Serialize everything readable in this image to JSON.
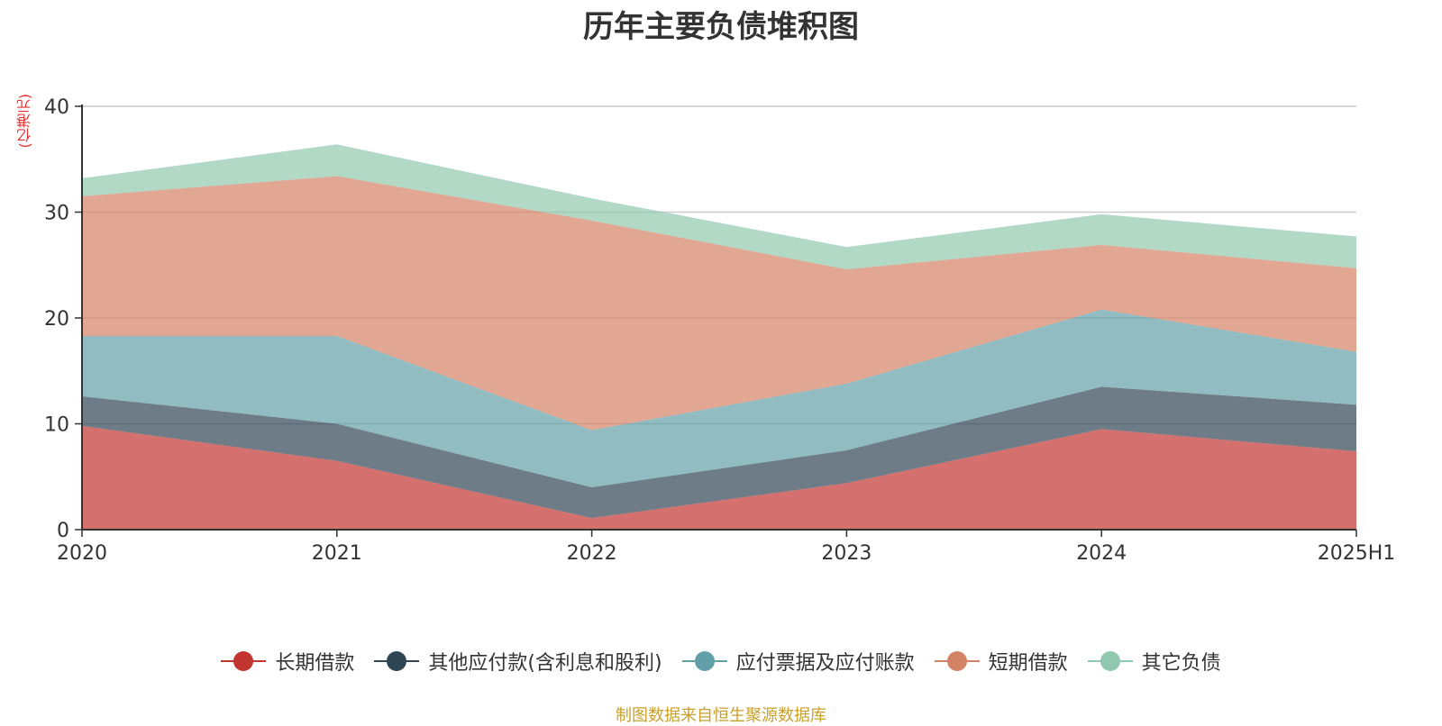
{
  "chart_data": {
    "type": "area",
    "stacked": true,
    "title": "历年主要负债堆积图",
    "ylabel": "(亿港元)",
    "categories": [
      "2020",
      "2021",
      "2022",
      "2023",
      "2024",
      "2025H1"
    ],
    "ylim": [
      0,
      40
    ],
    "yticks": [
      0,
      10,
      20,
      30,
      40
    ],
    "grid": true,
    "legend_position": "bottom",
    "series": [
      {
        "name": "长期借款",
        "values": [
          9.8,
          6.5,
          1.1,
          4.4,
          9.5,
          7.4
        ],
        "color": "#c23531"
      },
      {
        "name": "其他应付款(含利息和股利)",
        "values": [
          2.8,
          3.5,
          2.9,
          3.1,
          4.0,
          4.4
        ],
        "color": "#2f4554"
      },
      {
        "name": "应付票据及应付账款",
        "values": [
          5.7,
          8.3,
          5.4,
          6.3,
          7.3,
          5.0
        ],
        "color": "#61a0a8"
      },
      {
        "name": "短期借款",
        "values": [
          13.2,
          15.1,
          19.8,
          10.8,
          6.1,
          7.9
        ],
        "color": "#d48265"
      },
      {
        "name": "其它负债",
        "values": [
          1.7,
          3.0,
          2.1,
          2.1,
          2.9,
          3.0
        ],
        "color": "#91c7ae"
      }
    ]
  },
  "footer": {
    "source": "制图数据来自恒生聚源数据库"
  }
}
